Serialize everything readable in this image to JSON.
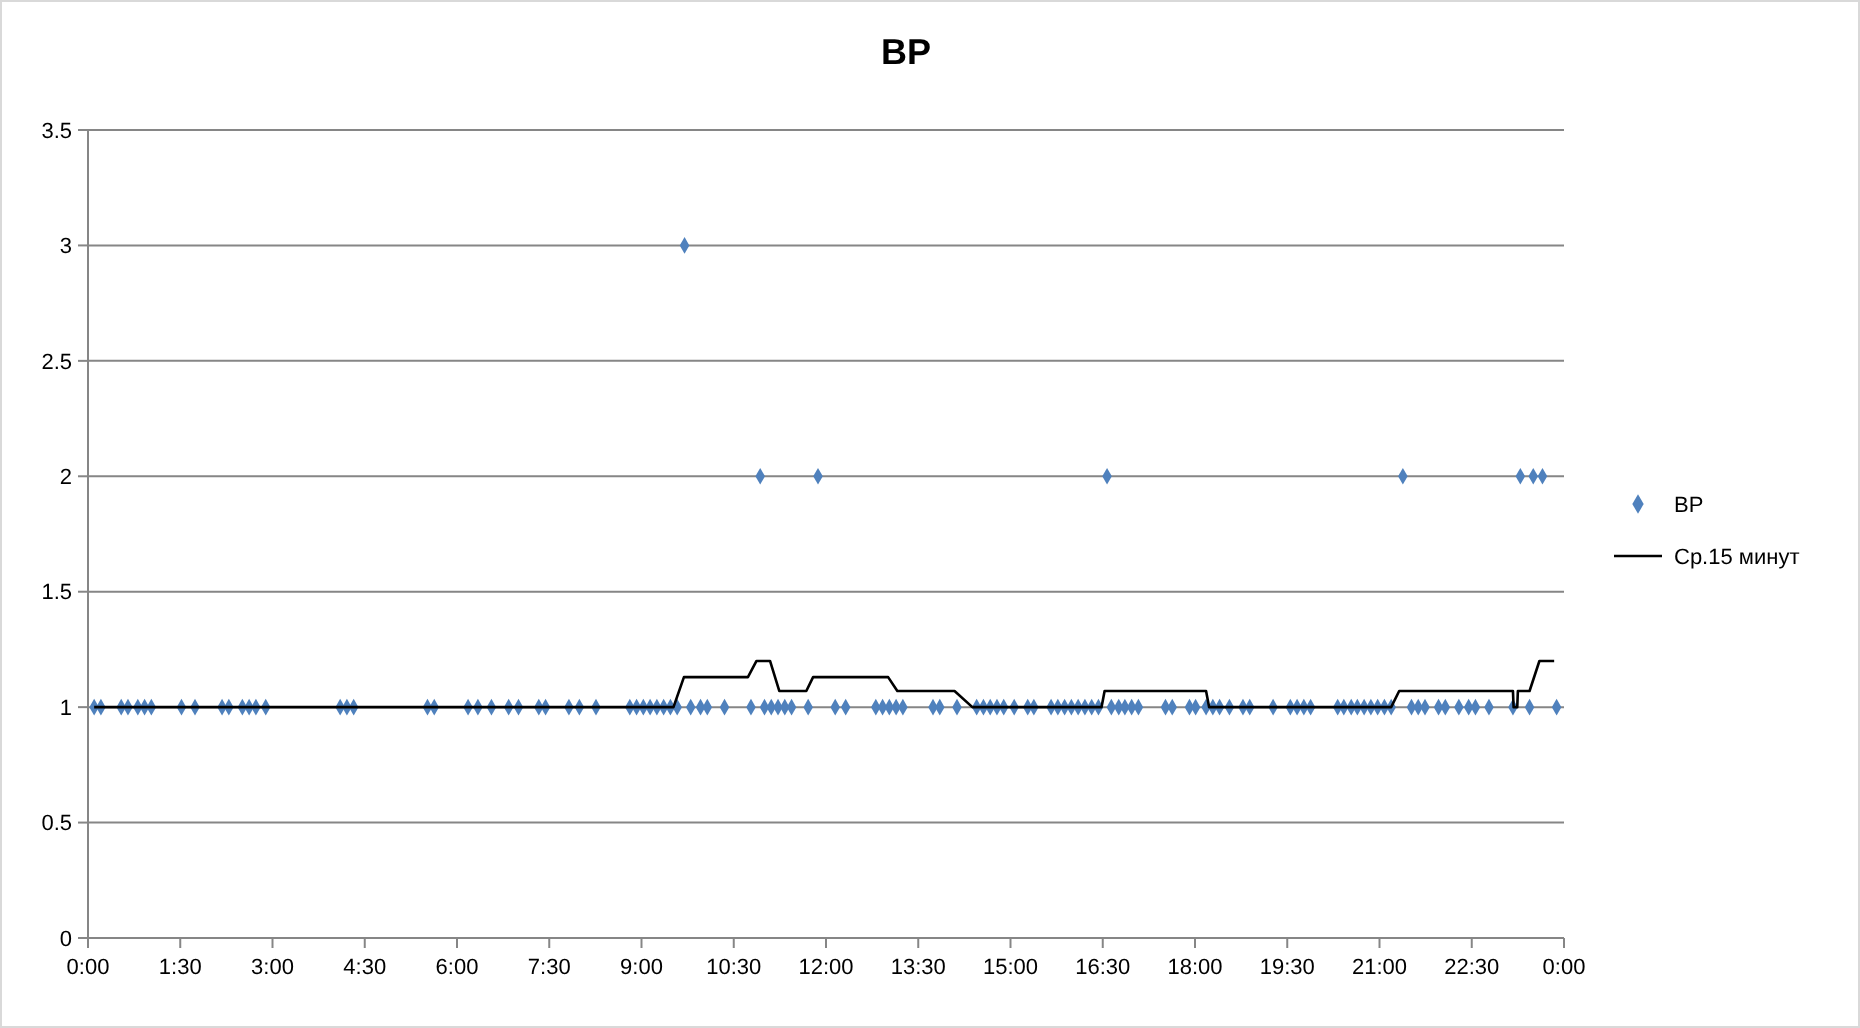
{
  "chart_data": {
    "type": "scatter",
    "title": "BP",
    "xlim": [
      0,
      24
    ],
    "ylim": [
      0,
      3.5
    ],
    "xticks": [
      {
        "value": 0,
        "label": "0:00"
      },
      {
        "value": 1.5,
        "label": "1:30"
      },
      {
        "value": 3,
        "label": "3:00"
      },
      {
        "value": 4.5,
        "label": "4:30"
      },
      {
        "value": 6,
        "label": "6:00"
      },
      {
        "value": 7.5,
        "label": "7:30"
      },
      {
        "value": 9,
        "label": "9:00"
      },
      {
        "value": 10.5,
        "label": "10:30"
      },
      {
        "value": 12,
        "label": "12:00"
      },
      {
        "value": 13.5,
        "label": "13:30"
      },
      {
        "value": 15,
        "label": "15:00"
      },
      {
        "value": 16.5,
        "label": "16:30"
      },
      {
        "value": 18,
        "label": "18:00"
      },
      {
        "value": 19.5,
        "label": "19:30"
      },
      {
        "value": 21,
        "label": "21:00"
      },
      {
        "value": 22.5,
        "label": "22:30"
      },
      {
        "value": 24,
        "label": "0:00"
      }
    ],
    "yticks": [
      0,
      0.5,
      1,
      1.5,
      2,
      2.5,
      3,
      3.5
    ],
    "grid": "y",
    "legend": "right",
    "series": [
      {
        "name": "BP",
        "color": "#4f81bd",
        "marker": "diamond",
        "x": [
          0.1,
          0.21,
          0.54,
          0.65,
          0.81,
          0.92,
          1.03,
          1.52,
          1.74,
          2.18,
          2.29,
          2.51,
          2.62,
          2.73,
          2.89,
          4.1,
          4.21,
          4.32,
          5.52,
          5.63,
          6.18,
          6.34,
          6.56,
          6.84,
          7.0,
          7.33,
          7.44,
          7.82,
          7.99,
          8.26,
          8.81,
          8.92,
          9.03,
          9.14,
          9.25,
          9.36,
          9.47,
          9.58,
          9.7,
          9.8,
          9.96,
          10.07,
          10.35,
          10.78,
          10.93,
          11.0,
          11.11,
          11.22,
          11.33,
          11.44,
          11.71,
          11.87,
          12.15,
          12.32,
          12.81,
          12.92,
          13.03,
          13.14,
          13.25,
          13.74,
          13.85,
          14.13,
          14.45,
          14.56,
          14.67,
          14.78,
          14.89,
          15.06,
          15.28,
          15.38,
          15.66,
          15.77,
          15.88,
          15.99,
          16.1,
          16.21,
          16.32,
          16.43,
          16.57,
          16.64,
          16.76,
          16.86,
          16.97,
          17.08,
          17.52,
          17.63,
          17.91,
          18.01,
          18.18,
          18.29,
          18.4,
          18.56,
          18.78,
          18.89,
          19.27,
          19.55,
          19.66,
          19.77,
          19.88,
          20.32,
          20.42,
          20.54,
          20.64,
          20.75,
          20.86,
          20.97,
          21.08,
          21.19,
          21.38,
          21.52,
          21.63,
          21.74,
          21.96,
          22.07,
          22.29,
          22.45,
          22.56,
          22.78,
          23.17,
          23.29,
          23.44,
          23.5,
          23.65,
          23.88
        ],
        "values": [
          1,
          1,
          1,
          1,
          1,
          1,
          1,
          1,
          1,
          1,
          1,
          1,
          1,
          1,
          1,
          1,
          1,
          1,
          1,
          1,
          1,
          1,
          1,
          1,
          1,
          1,
          1,
          1,
          1,
          1,
          1,
          1,
          1,
          1,
          1,
          1,
          1,
          1,
          3,
          1,
          1,
          1,
          1,
          1,
          2,
          1,
          1,
          1,
          1,
          1,
          1,
          2,
          1,
          1,
          1,
          1,
          1,
          1,
          1,
          1,
          1,
          1,
          1,
          1,
          1,
          1,
          1,
          1,
          1,
          1,
          1,
          1,
          1,
          1,
          1,
          1,
          1,
          1,
          2,
          1,
          1,
          1,
          1,
          1,
          1,
          1,
          1,
          1,
          1,
          1,
          1,
          1,
          1,
          1,
          1,
          1,
          1,
          1,
          1,
          1,
          1,
          1,
          1,
          1,
          1,
          1,
          1,
          1,
          2,
          1,
          1,
          1,
          1,
          1,
          1,
          1,
          1,
          1,
          1,
          2,
          1,
          2,
          2,
          1
        ]
      },
      {
        "name": "Ср.15 минут",
        "type": "line",
        "color": "#000000",
        "marker": "none",
        "x": [
          0.1,
          9.52,
          9.69,
          10.73,
          10.87,
          11.09,
          11.24,
          11.68,
          11.79,
          13.01,
          13.16,
          14.09,
          14.38,
          16.48,
          16.53,
          18.18,
          18.23,
          21.19,
          21.32,
          23.17,
          23.18,
          23.24,
          23.25,
          23.44,
          23.6,
          23.84
        ],
        "values": [
          1,
          1,
          1.13,
          1.13,
          1.2,
          1.2,
          1.07,
          1.07,
          1.13,
          1.13,
          1.07,
          1.07,
          1,
          1,
          1.07,
          1.07,
          1,
          1,
          1.07,
          1.07,
          1,
          1,
          1.07,
          1.07,
          1.2,
          1.2
        ]
      }
    ]
  }
}
